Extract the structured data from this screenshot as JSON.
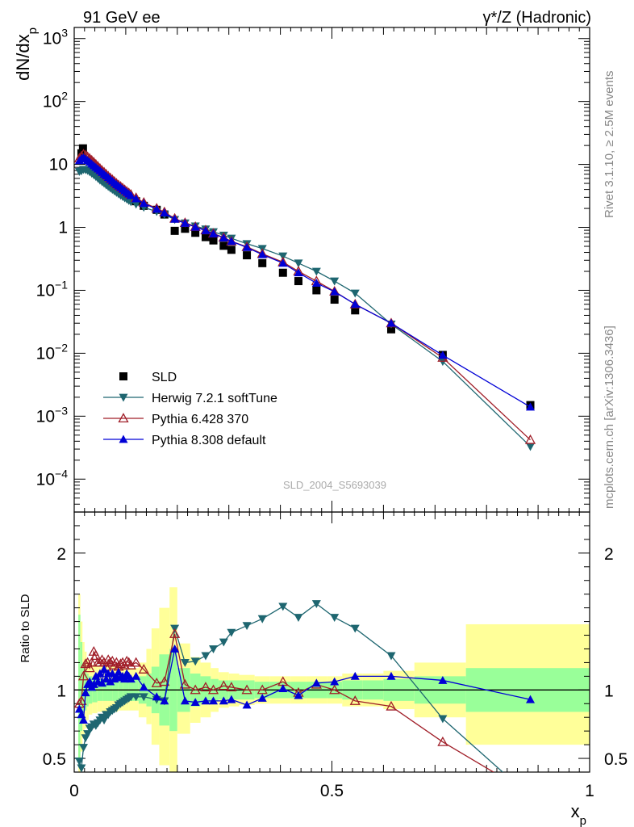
{
  "header": {
    "left_title": "91 GeV ee",
    "right_title": "γ*/Z (Hadronic)",
    "side_top": "Rivet 3.1.10, ≥ 2.5M events",
    "side_bottom": "mcplots.cern.ch [arXiv:1306.3436]",
    "watermark": "SLD_2004_S5693039"
  },
  "colors": {
    "SLD": "#000000",
    "Herwig": "#1e6670",
    "Pythia6": "#a01e28",
    "Pythia8": "#0000d6",
    "band_inner": "#99ff99",
    "band_outer": "#ffff99"
  },
  "chart_data": [
    {
      "type": "line",
      "panel": "main",
      "ylabel": "dN/dx_p",
      "yscale": "log",
      "ylim": [
        3e-05,
        1500
      ],
      "xlim": [
        0,
        1.0
      ],
      "y_ticks": [
        "10^-4",
        "10^-3",
        "10^-2",
        "10^-1",
        "1",
        "10",
        "10^2",
        "10^3"
      ],
      "legend_position": "lower-left",
      "legend": [
        "SLD",
        "Herwig 7.2.1 softTune",
        "Pythia 6.428 370",
        "Pythia 8.308 default"
      ],
      "series": [
        {
          "name": "SLD",
          "marker": "square",
          "x": [
            0.014,
            0.017,
            0.12,
            0.135,
            0.16,
            0.175,
            0.195,
            0.215,
            0.235,
            0.255,
            0.27,
            0.29,
            0.305,
            0.335,
            0.365,
            0.405,
            0.435,
            0.47,
            0.505,
            0.545,
            0.615,
            0.715,
            0.885
          ],
          "y": [
            15,
            18,
            2.6,
            2.2,
            1.9,
            1.6,
            0.88,
            0.95,
            0.82,
            0.7,
            0.62,
            0.51,
            0.44,
            0.36,
            0.27,
            0.19,
            0.14,
            0.1,
            0.071,
            0.048,
            0.024,
            0.0094,
            0.0015
          ]
        },
        {
          "name": "Herwig 7.2.1 softTune",
          "marker": "triangle-down",
          "x": [
            0.01,
            0.014,
            0.018,
            0.022,
            0.026,
            0.03,
            0.034,
            0.038,
            0.042,
            0.046,
            0.05,
            0.054,
            0.058,
            0.062,
            0.066,
            0.07,
            0.074,
            0.078,
            0.082,
            0.086,
            0.09,
            0.094,
            0.098,
            0.102,
            0.106,
            0.11,
            0.12,
            0.135,
            0.16,
            0.175,
            0.195,
            0.215,
            0.235,
            0.255,
            0.27,
            0.29,
            0.305,
            0.335,
            0.365,
            0.405,
            0.435,
            0.47,
            0.505,
            0.545,
            0.615,
            0.715,
            0.885
          ],
          "y": [
            7.7,
            7.9,
            8.3,
            8.2,
            8.0,
            7.6,
            7.2,
            6.8,
            6.4,
            6.0,
            5.6,
            5.3,
            5.0,
            4.7,
            4.45,
            4.2,
            3.98,
            3.78,
            3.58,
            3.4,
            3.23,
            3.07,
            2.93,
            2.8,
            2.66,
            2.55,
            2.33,
            2.08,
            1.78,
            1.6,
            1.33,
            1.17,
            1.05,
            0.94,
            0.85,
            0.75,
            0.67,
            0.55,
            0.46,
            0.35,
            0.27,
            0.2,
            0.14,
            0.09,
            0.029,
            0.0074,
            0.00033
          ]
        },
        {
          "name": "Pythia 6.428 370",
          "marker": "triangle-open",
          "x": [
            0.01,
            0.014,
            0.018,
            0.022,
            0.026,
            0.03,
            0.034,
            0.038,
            0.042,
            0.046,
            0.05,
            0.054,
            0.058,
            0.062,
            0.066,
            0.07,
            0.074,
            0.078,
            0.082,
            0.086,
            0.09,
            0.094,
            0.098,
            0.102,
            0.106,
            0.11,
            0.12,
            0.135,
            0.16,
            0.175,
            0.195,
            0.215,
            0.235,
            0.255,
            0.27,
            0.29,
            0.305,
            0.335,
            0.365,
            0.405,
            0.435,
            0.47,
            0.505,
            0.545,
            0.615,
            0.715,
            0.885
          ],
          "y": [
            12.5,
            13.5,
            14.5,
            14.0,
            13.2,
            12.4,
            11.6,
            10.8,
            10.0,
            9.3,
            8.6,
            8.0,
            7.5,
            7.0,
            6.5,
            6.1,
            5.7,
            5.35,
            5.0,
            4.7,
            4.45,
            4.2,
            3.95,
            3.72,
            3.52,
            3.33,
            2.95,
            2.48,
            2.0,
            1.75,
            1.38,
            1.18,
            1.02,
            0.9,
            0.8,
            0.69,
            0.6,
            0.49,
            0.38,
            0.28,
            0.2,
            0.14,
            0.096,
            0.06,
            0.03,
            0.0085,
            0.00042
          ]
        },
        {
          "name": "Pythia 8.308 default",
          "marker": "triangle-up",
          "x": [
            0.01,
            0.014,
            0.018,
            0.022,
            0.026,
            0.03,
            0.034,
            0.038,
            0.042,
            0.046,
            0.05,
            0.054,
            0.058,
            0.062,
            0.066,
            0.07,
            0.074,
            0.078,
            0.082,
            0.086,
            0.09,
            0.094,
            0.098,
            0.102,
            0.106,
            0.11,
            0.12,
            0.135,
            0.16,
            0.175,
            0.195,
            0.215,
            0.235,
            0.255,
            0.27,
            0.29,
            0.305,
            0.335,
            0.365,
            0.405,
            0.435,
            0.47,
            0.505,
            0.545,
            0.615,
            0.715,
            0.885
          ],
          "y": [
            11.5,
            12.4,
            12.8,
            12.2,
            11.6,
            10.9,
            10.2,
            9.6,
            9.0,
            8.5,
            8.0,
            7.5,
            7.0,
            6.6,
            6.2,
            5.8,
            5.45,
            5.1,
            4.8,
            4.55,
            4.3,
            4.05,
            3.82,
            3.6,
            3.4,
            3.2,
            2.85,
            2.4,
            1.95,
            1.7,
            1.35,
            1.16,
            1.01,
            0.89,
            0.79,
            0.68,
            0.6,
            0.48,
            0.37,
            0.27,
            0.19,
            0.13,
            0.095,
            0.06,
            0.03,
            0.0093,
            0.0014
          ]
        }
      ]
    },
    {
      "type": "line",
      "panel": "ratio",
      "ylabel": "Ratio to SLD",
      "xlabel": "x_p",
      "ylim": [
        0.4,
        2.3
      ],
      "xlim": [
        0,
        1.0
      ],
      "y_ticks": [
        0.5,
        1,
        2
      ],
      "x_ticks": [
        0,
        0.5,
        1
      ],
      "bands": {
        "edges": [
          0.008,
          0.012,
          0.016,
          0.02,
          0.024,
          0.028,
          0.035,
          0.045,
          0.055,
          0.065,
          0.075,
          0.085,
          0.095,
          0.105,
          0.115,
          0.125,
          0.14,
          0.15,
          0.165,
          0.185,
          0.2,
          0.225,
          0.245,
          0.265,
          0.28,
          0.3,
          0.32,
          0.35,
          0.38,
          0.42,
          0.45,
          0.49,
          0.52,
          0.56,
          0.6,
          0.66,
          0.76,
          1.0
        ],
        "inner_low": [
          0.45,
          0.7,
          0.78,
          0.85,
          0.88,
          0.9,
          0.91,
          0.92,
          0.92,
          0.92,
          0.92,
          0.92,
          0.92,
          0.92,
          0.92,
          0.9,
          0.88,
          0.83,
          0.74,
          0.7,
          0.84,
          0.88,
          0.9,
          0.92,
          0.93,
          0.93,
          0.93,
          0.94,
          0.94,
          0.94,
          0.94,
          0.94,
          0.93,
          0.93,
          0.92,
          0.9,
          0.84
        ],
        "inner_high": [
          1.55,
          1.35,
          1.2,
          1.15,
          1.12,
          1.1,
          1.09,
          1.08,
          1.08,
          1.08,
          1.08,
          1.08,
          1.08,
          1.08,
          1.08,
          1.1,
          1.12,
          1.17,
          1.26,
          1.3,
          1.16,
          1.12,
          1.1,
          1.08,
          1.07,
          1.07,
          1.07,
          1.06,
          1.06,
          1.06,
          1.06,
          1.06,
          1.07,
          1.07,
          1.08,
          1.1,
          1.16
        ],
        "outer_low": [
          0.35,
          0.55,
          0.65,
          0.72,
          0.78,
          0.82,
          0.83,
          0.84,
          0.84,
          0.84,
          0.84,
          0.85,
          0.85,
          0.85,
          0.85,
          0.8,
          0.75,
          0.6,
          0.45,
          0.37,
          0.68,
          0.76,
          0.8,
          0.84,
          0.87,
          0.88,
          0.89,
          0.9,
          0.9,
          0.9,
          0.9,
          0.9,
          0.88,
          0.88,
          0.86,
          0.8,
          0.6
        ],
        "outer_high": [
          1.7,
          1.5,
          1.35,
          1.28,
          1.22,
          1.19,
          1.18,
          1.17,
          1.17,
          1.17,
          1.17,
          1.16,
          1.16,
          1.16,
          1.16,
          1.2,
          1.3,
          1.45,
          1.6,
          1.75,
          1.34,
          1.24,
          1.2,
          1.16,
          1.13,
          1.12,
          1.11,
          1.1,
          1.1,
          1.1,
          1.1,
          1.1,
          1.12,
          1.12,
          1.14,
          1.2,
          1.48
        ]
      },
      "series": [
        {
          "name": "SLD",
          "marker": "line",
          "x": [
            0,
            1
          ],
          "y": [
            1,
            1
          ]
        },
        {
          "name": "Herwig 7.2.1 softTune",
          "marker": "triangle-down",
          "x": [
            0.01,
            0.014,
            0.018,
            0.022,
            0.026,
            0.03,
            0.034,
            0.038,
            0.042,
            0.046,
            0.05,
            0.054,
            0.058,
            0.062,
            0.066,
            0.07,
            0.074,
            0.078,
            0.082,
            0.086,
            0.09,
            0.094,
            0.098,
            0.102,
            0.106,
            0.11,
            0.12,
            0.135,
            0.16,
            0.175,
            0.195,
            0.215,
            0.235,
            0.255,
            0.27,
            0.29,
            0.305,
            0.335,
            0.365,
            0.405,
            0.435,
            0.47,
            0.505,
            0.545,
            0.615,
            0.715,
            0.885
          ],
          "y": [
            0.48,
            0.43,
            0.58,
            0.65,
            0.68,
            0.72,
            0.73,
            0.75,
            0.74,
            0.76,
            0.78,
            0.8,
            0.78,
            0.82,
            0.82,
            0.84,
            0.85,
            0.86,
            0.87,
            0.89,
            0.9,
            0.91,
            0.92,
            0.93,
            0.94,
            0.95,
            0.95,
            0.95,
            0.93,
            0.92,
            1.45,
            1.2,
            1.21,
            1.25,
            1.3,
            1.35,
            1.42,
            1.47,
            1.52,
            1.61,
            1.53,
            1.63,
            1.53,
            1.45,
            1.25,
            0.79,
            0.22
          ]
        },
        {
          "name": "Pythia 6.428 370",
          "marker": "triangle-open",
          "x": [
            0.01,
            0.014,
            0.018,
            0.022,
            0.026,
            0.03,
            0.034,
            0.038,
            0.042,
            0.046,
            0.05,
            0.054,
            0.058,
            0.062,
            0.066,
            0.07,
            0.074,
            0.078,
            0.082,
            0.086,
            0.09,
            0.094,
            0.098,
            0.102,
            0.106,
            0.11,
            0.12,
            0.135,
            0.16,
            0.175,
            0.195,
            0.215,
            0.235,
            0.255,
            0.27,
            0.29,
            0.305,
            0.335,
            0.365,
            0.405,
            0.435,
            0.47,
            0.505,
            0.545,
            0.615,
            0.715,
            0.885
          ],
          "y": [
            0.9,
            0.92,
            1.1,
            1.19,
            1.2,
            1.16,
            1.2,
            1.28,
            1.25,
            1.2,
            1.2,
            1.22,
            1.2,
            1.17,
            1.22,
            1.2,
            1.21,
            1.18,
            1.2,
            1.17,
            1.19,
            1.2,
            1.18,
            1.21,
            1.2,
            1.18,
            1.2,
            1.15,
            1.05,
            1.06,
            1.41,
            1.04,
            1.0,
            1.02,
            1.0,
            1.03,
            1.02,
            1.0,
            1.0,
            1.06,
            0.98,
            1.04,
            1.0,
            0.92,
            0.88,
            0.62,
            0.24
          ]
        },
        {
          "name": "Pythia 8.308 default",
          "marker": "triangle-up",
          "x": [
            0.01,
            0.014,
            0.018,
            0.022,
            0.026,
            0.03,
            0.034,
            0.038,
            0.042,
            0.046,
            0.05,
            0.054,
            0.058,
            0.062,
            0.066,
            0.07,
            0.074,
            0.078,
            0.082,
            0.086,
            0.09,
            0.094,
            0.098,
            0.102,
            0.106,
            0.11,
            0.12,
            0.135,
            0.16,
            0.175,
            0.195,
            0.215,
            0.235,
            0.255,
            0.27,
            0.29,
            0.305,
            0.335,
            0.365,
            0.405,
            0.435,
            0.47,
            0.505,
            0.545,
            0.615,
            0.715,
            0.885
          ],
          "y": [
            0.86,
            0.82,
            0.78,
            0.98,
            1.04,
            1.06,
            1.02,
            1.04,
            1.1,
            1.06,
            1.12,
            1.05,
            1.15,
            1.08,
            1.12,
            1.06,
            1.12,
            1.08,
            1.1,
            1.13,
            1.09,
            1.1,
            1.08,
            1.12,
            1.1,
            1.08,
            1.1,
            1.02,
            0.95,
            0.92,
            1.3,
            0.92,
            0.91,
            0.92,
            0.92,
            0.92,
            0.93,
            0.89,
            0.94,
            1.01,
            0.96,
            1.05,
            1.06,
            1.1,
            1.1,
            1.07,
            0.93
          ]
        }
      ]
    }
  ]
}
